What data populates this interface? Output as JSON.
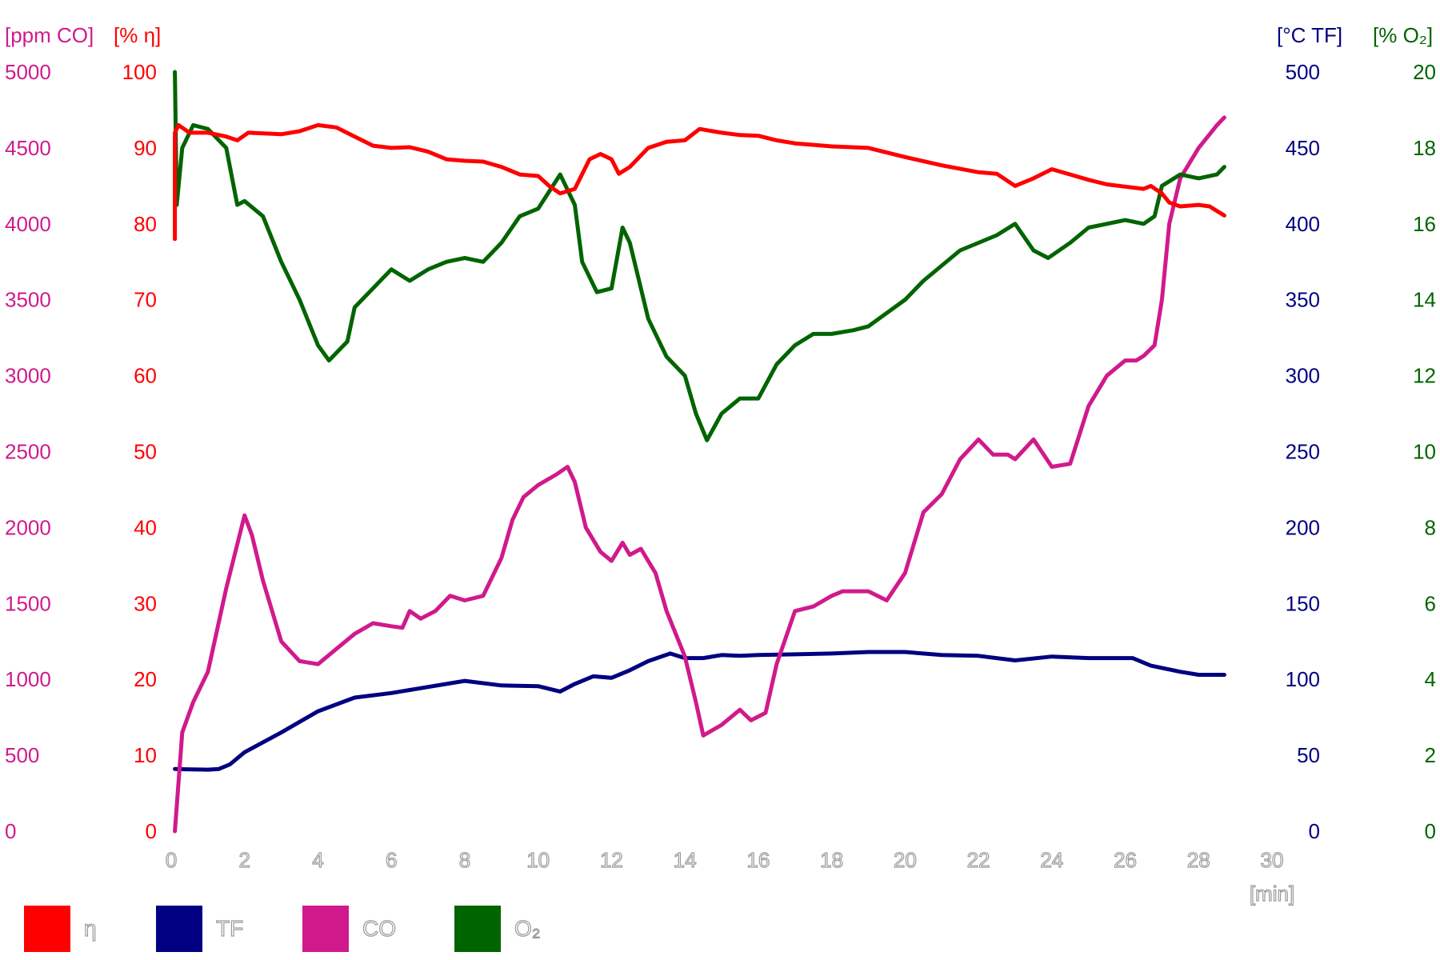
{
  "chart_data": {
    "type": "line",
    "units": {
      "co": "[ppm CO]",
      "eta": "[% η]",
      "tf": "[°C TF]",
      "o2": "[% O₂]",
      "x": "[min]"
    },
    "axes": {
      "co": {
        "min": 0,
        "max": 5000,
        "ticks": [
          "0",
          "500",
          "1000",
          "1500",
          "2000",
          "2500",
          "3000",
          "3500",
          "4000",
          "4500",
          "5000"
        ],
        "color": "#d01a8c"
      },
      "eta": {
        "min": 0,
        "max": 100,
        "ticks": [
          "0",
          "10",
          "20",
          "30",
          "40",
          "50",
          "60",
          "70",
          "80",
          "90",
          "100"
        ],
        "color": "#ff0000"
      },
      "tf": {
        "min": 0,
        "max": 500,
        "ticks": [
          "0",
          "50",
          "100",
          "150",
          "200",
          "250",
          "300",
          "350",
          "400",
          "450",
          "500"
        ],
        "color": "#000080"
      },
      "o2": {
        "min": 0,
        "max": 20,
        "ticks": [
          "0",
          "2",
          "4",
          "6",
          "8",
          "10",
          "12",
          "14",
          "16",
          "18",
          "20"
        ],
        "color": "#006400"
      },
      "x": {
        "min": 0,
        "max": 30,
        "ticks": [
          "0",
          "2",
          "4",
          "6",
          "8",
          "10",
          "12",
          "14",
          "16",
          "18",
          "20",
          "22",
          "24",
          "26",
          "28",
          "30"
        ]
      }
    },
    "series": [
      {
        "name": "η",
        "axis": "eta",
        "color": "#ff0000",
        "points": [
          [
            0.1,
            78
          ],
          [
            0.1,
            92
          ],
          [
            0.2,
            93
          ],
          [
            0.5,
            92
          ],
          [
            1,
            92
          ],
          [
            1.5,
            91.5
          ],
          [
            1.8,
            91
          ],
          [
            2.1,
            92
          ],
          [
            3,
            91.8
          ],
          [
            3.5,
            92.2
          ],
          [
            4,
            93
          ],
          [
            4.5,
            92.7
          ],
          [
            5,
            91.5
          ],
          [
            5.5,
            90.3
          ],
          [
            6,
            90
          ],
          [
            6.5,
            90.1
          ],
          [
            7,
            89.5
          ],
          [
            7.5,
            88.5
          ],
          [
            8,
            88.3
          ],
          [
            8.5,
            88.2
          ],
          [
            9,
            87.5
          ],
          [
            9.5,
            86.5
          ],
          [
            10,
            86.3
          ],
          [
            10.3,
            85
          ],
          [
            10.6,
            84
          ],
          [
            11,
            84.6
          ],
          [
            11.4,
            88.5
          ],
          [
            11.7,
            89.2
          ],
          [
            12,
            88.5
          ],
          [
            12.2,
            86.6
          ],
          [
            12.5,
            87.5
          ],
          [
            13,
            90
          ],
          [
            13.5,
            90.8
          ],
          [
            14,
            91
          ],
          [
            14.4,
            92.5
          ],
          [
            15,
            92
          ],
          [
            15.5,
            91.7
          ],
          [
            16,
            91.6
          ],
          [
            16.5,
            91
          ],
          [
            17,
            90.6
          ],
          [
            18,
            90.2
          ],
          [
            19,
            90
          ],
          [
            20,
            88.8
          ],
          [
            21,
            87.7
          ],
          [
            22,
            86.8
          ],
          [
            22.5,
            86.6
          ],
          [
            23,
            85
          ],
          [
            23.5,
            86
          ],
          [
            24,
            87.2
          ],
          [
            24.5,
            86.5
          ],
          [
            25,
            85.8
          ],
          [
            25.5,
            85.2
          ],
          [
            26,
            84.9
          ],
          [
            26.5,
            84.6
          ],
          [
            26.7,
            85
          ],
          [
            27,
            84
          ],
          [
            27.2,
            82.8
          ],
          [
            27.5,
            82.3
          ],
          [
            28,
            82.5
          ],
          [
            28.3,
            82.3
          ],
          [
            28.5,
            81.7
          ],
          [
            28.7,
            81.1
          ]
        ]
      },
      {
        "name": "TF",
        "axis": "tf",
        "color": "#000080",
        "points": [
          [
            0.1,
            41
          ],
          [
            0.4,
            40.8
          ],
          [
            1,
            40.5
          ],
          [
            1.3,
            41
          ],
          [
            1.6,
            44
          ],
          [
            2,
            52
          ],
          [
            3,
            65
          ],
          [
            4,
            79
          ],
          [
            5,
            88
          ],
          [
            6,
            91
          ],
          [
            7,
            95
          ],
          [
            8,
            99
          ],
          [
            9,
            96
          ],
          [
            10,
            95.5
          ],
          [
            10.6,
            92
          ],
          [
            11,
            97
          ],
          [
            11.5,
            102
          ],
          [
            12,
            101
          ],
          [
            12.5,
            106
          ],
          [
            13,
            112
          ],
          [
            13.6,
            117
          ],
          [
            14,
            114
          ],
          [
            14.5,
            114
          ],
          [
            15,
            116
          ],
          [
            15.5,
            115.5
          ],
          [
            16,
            116
          ],
          [
            17,
            116.5
          ],
          [
            18,
            117
          ],
          [
            19,
            118
          ],
          [
            20,
            118
          ],
          [
            21,
            116
          ],
          [
            22,
            115.5
          ],
          [
            23,
            112.5
          ],
          [
            24,
            115
          ],
          [
            25,
            114
          ],
          [
            26,
            114
          ],
          [
            26.2,
            114
          ],
          [
            26.7,
            109
          ],
          [
            27.5,
            105
          ],
          [
            28,
            103
          ],
          [
            28.7,
            103
          ]
        ]
      },
      {
        "name": "CO",
        "axis": "co",
        "color": "#d01a8c",
        "points": [
          [
            0.1,
            0
          ],
          [
            0.3,
            650
          ],
          [
            0.6,
            850
          ],
          [
            1,
            1050
          ],
          [
            1.5,
            1600
          ],
          [
            2,
            2080
          ],
          [
            2.2,
            1950
          ],
          [
            2.5,
            1650
          ],
          [
            3,
            1250
          ],
          [
            3.5,
            1120
          ],
          [
            4,
            1100
          ],
          [
            4.5,
            1200
          ],
          [
            5,
            1300
          ],
          [
            5.5,
            1370
          ],
          [
            6,
            1350
          ],
          [
            6.3,
            1340
          ],
          [
            6.5,
            1450
          ],
          [
            6.8,
            1400
          ],
          [
            7.2,
            1450
          ],
          [
            7.6,
            1550
          ],
          [
            8,
            1520
          ],
          [
            8.5,
            1550
          ],
          [
            9,
            1800
          ],
          [
            9.3,
            2050
          ],
          [
            9.6,
            2200
          ],
          [
            10,
            2280
          ],
          [
            10.5,
            2350
          ],
          [
            10.8,
            2400
          ],
          [
            11,
            2300
          ],
          [
            11.3,
            2000
          ],
          [
            11.7,
            1840
          ],
          [
            12,
            1780
          ],
          [
            12.3,
            1900
          ],
          [
            12.5,
            1820
          ],
          [
            12.8,
            1860
          ],
          [
            13.2,
            1700
          ],
          [
            13.5,
            1450
          ],
          [
            14,
            1150
          ],
          [
            14.3,
            850
          ],
          [
            14.5,
            630
          ],
          [
            15,
            700
          ],
          [
            15.5,
            800
          ],
          [
            15.8,
            730
          ],
          [
            16.2,
            780
          ],
          [
            16.5,
            1100
          ],
          [
            17,
            1450
          ],
          [
            17.5,
            1480
          ],
          [
            18,
            1550
          ],
          [
            18.3,
            1580
          ],
          [
            19,
            1580
          ],
          [
            19.5,
            1520
          ],
          [
            20,
            1700
          ],
          [
            20.5,
            2100
          ],
          [
            21,
            2220
          ],
          [
            21.5,
            2450
          ],
          [
            22,
            2580
          ],
          [
            22.4,
            2480
          ],
          [
            22.8,
            2480
          ],
          [
            23,
            2450
          ],
          [
            23.5,
            2580
          ],
          [
            24,
            2400
          ],
          [
            24.5,
            2420
          ],
          [
            25,
            2800
          ],
          [
            25.5,
            3000
          ],
          [
            26,
            3100
          ],
          [
            26.3,
            3100
          ],
          [
            26.5,
            3130
          ],
          [
            26.8,
            3200
          ],
          [
            27,
            3500
          ],
          [
            27.2,
            4000
          ],
          [
            27.5,
            4300
          ],
          [
            28,
            4500
          ],
          [
            28.5,
            4650
          ],
          [
            28.7,
            4700
          ]
        ]
      },
      {
        "name": "O₂",
        "axis": "o2",
        "color": "#006400",
        "points": [
          [
            0.1,
            20
          ],
          [
            0.15,
            16.5
          ],
          [
            0.3,
            18
          ],
          [
            0.6,
            18.6
          ],
          [
            1,
            18.5
          ],
          [
            1.5,
            18
          ],
          [
            1.8,
            16.5
          ],
          [
            2,
            16.6
          ],
          [
            2.5,
            16.2
          ],
          [
            3,
            15
          ],
          [
            3.5,
            14
          ],
          [
            4,
            12.8
          ],
          [
            4.3,
            12.4
          ],
          [
            4.8,
            12.9
          ],
          [
            5,
            13.8
          ],
          [
            6,
            14.8
          ],
          [
            6.5,
            14.5
          ],
          [
            7,
            14.8
          ],
          [
            7.5,
            15
          ],
          [
            8,
            15.1
          ],
          [
            8.5,
            15
          ],
          [
            9,
            15.5
          ],
          [
            9.5,
            16.2
          ],
          [
            10,
            16.4
          ],
          [
            10.6,
            17.3
          ],
          [
            11,
            16.5
          ],
          [
            11.2,
            15
          ],
          [
            11.6,
            14.2
          ],
          [
            12,
            14.3
          ],
          [
            12.3,
            15.9
          ],
          [
            12.5,
            15.5
          ],
          [
            13,
            13.5
          ],
          [
            13.5,
            12.5
          ],
          [
            14,
            12
          ],
          [
            14.3,
            11
          ],
          [
            14.6,
            10.3
          ],
          [
            15,
            11
          ],
          [
            15.5,
            11.4
          ],
          [
            16,
            11.4
          ],
          [
            16.5,
            12.3
          ],
          [
            17,
            12.8
          ],
          [
            17.5,
            13.1
          ],
          [
            18,
            13.1
          ],
          [
            18.6,
            13.2
          ],
          [
            19,
            13.3
          ],
          [
            20,
            14
          ],
          [
            20.5,
            14.5
          ],
          [
            21,
            14.9
          ],
          [
            21.5,
            15.3
          ],
          [
            22,
            15.5
          ],
          [
            22.5,
            15.7
          ],
          [
            23,
            16
          ],
          [
            23.5,
            15.3
          ],
          [
            23.9,
            15.1
          ],
          [
            24.5,
            15.5
          ],
          [
            25,
            15.9
          ],
          [
            25.5,
            16
          ],
          [
            26,
            16.1
          ],
          [
            26.5,
            16
          ],
          [
            26.8,
            16.2
          ],
          [
            27,
            17
          ],
          [
            27.5,
            17.3
          ],
          [
            28,
            17.2
          ],
          [
            28.5,
            17.3
          ],
          [
            28.7,
            17.5
          ]
        ]
      }
    ],
    "legend": [
      {
        "label": "η",
        "color": "#ff0000"
      },
      {
        "label": "TF",
        "color": "#000080"
      },
      {
        "label": "CO",
        "color": "#d01a8c"
      },
      {
        "label": "O₂",
        "color": "#006400"
      }
    ],
    "legend_position": "bottom-left",
    "grid": false
  }
}
